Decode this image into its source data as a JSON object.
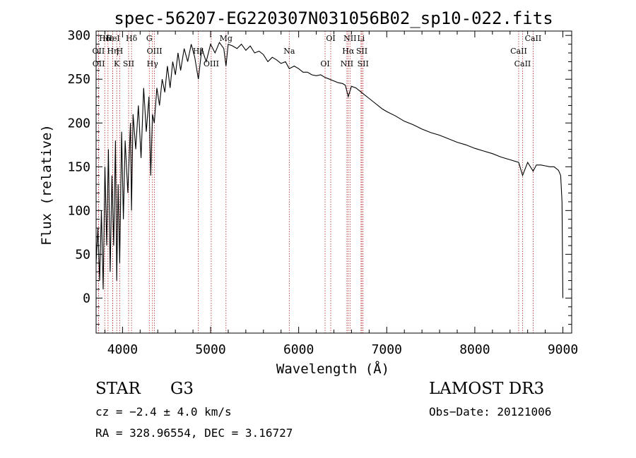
{
  "chart_data": {
    "type": "line",
    "title": "spec-56207-EG220307N031056B02_sp10-022.fits",
    "xlabel": "Wavelength (Å)",
    "ylabel": "Flux (relative)",
    "xlim": [
      3700,
      9100
    ],
    "ylim": [
      -40,
      305
    ],
    "x_ticks": [
      4000,
      5000,
      6000,
      7000,
      8000,
      9000
    ],
    "y_ticks": [
      0,
      50,
      100,
      150,
      200,
      250,
      300
    ],
    "x_tick_labels": [
      "4000",
      "5000",
      "6000",
      "7000",
      "8000",
      "9000"
    ],
    "y_tick_labels": [
      "0",
      "50",
      "100",
      "150",
      "200",
      "250",
      "300"
    ],
    "series": [
      {
        "name": "spectrum",
        "x": [
          3700,
          3720,
          3740,
          3760,
          3780,
          3800,
          3820,
          3840,
          3860,
          3880,
          3900,
          3920,
          3934,
          3950,
          3968,
          3990,
          4010,
          4030,
          4060,
          4090,
          4102,
          4120,
          4150,
          4180,
          4210,
          4240,
          4270,
          4300,
          4320,
          4340,
          4360,
          4390,
          4420,
          4450,
          4480,
          4510,
          4540,
          4570,
          4600,
          4630,
          4660,
          4700,
          4740,
          4780,
          4820,
          4861,
          4900,
          4950,
          5000,
          5050,
          5100,
          5150,
          5175,
          5200,
          5250,
          5300,
          5350,
          5400,
          5450,
          5500,
          5550,
          5600,
          5650,
          5700,
          5750,
          5800,
          5850,
          5893,
          5950,
          6000,
          6050,
          6100,
          6150,
          6200,
          6250,
          6300,
          6350,
          6400,
          6450,
          6500,
          6530,
          6563,
          6600,
          6650,
          6700,
          6750,
          6800,
          6850,
          6900,
          6950,
          7000,
          7100,
          7200,
          7300,
          7400,
          7500,
          7600,
          7700,
          7800,
          7900,
          8000,
          8100,
          8200,
          8300,
          8400,
          8498,
          8542,
          8600,
          8662,
          8700,
          8750,
          8800,
          8850,
          8900,
          8950,
          8975,
          8990,
          9000
        ],
        "values": [
          40,
          80,
          20,
          100,
          10,
          150,
          60,
          170,
          30,
          140,
          60,
          180,
          20,
          130,
          40,
          190,
          90,
          180,
          120,
          200,
          100,
          210,
          170,
          220,
          160,
          240,
          190,
          230,
          140,
          210,
          200,
          240,
          220,
          250,
          235,
          265,
          240,
          270,
          255,
          280,
          260,
          285,
          270,
          290,
          275,
          250,
          285,
          270,
          290,
          280,
          292,
          285,
          265,
          290,
          288,
          285,
          290,
          283,
          288,
          280,
          282,
          278,
          270,
          275,
          272,
          268,
          270,
          262,
          265,
          262,
          258,
          258,
          255,
          254,
          255,
          252,
          250,
          248,
          246,
          245,
          243,
          230,
          242,
          240,
          236,
          232,
          228,
          224,
          220,
          216,
          213,
          208,
          202,
          198,
          193,
          189,
          186,
          182,
          178,
          175,
          171,
          168,
          165,
          161,
          158,
          155,
          140,
          155,
          145,
          152,
          152,
          151,
          150,
          150,
          146,
          140,
          110,
          0
        ]
      }
    ],
    "line_markers": [
      {
        "label": "Hδ",
        "x": 3798
      },
      {
        "label": "OII",
        "x": 3727
      },
      {
        "label": "OII",
        "x": 3729
      },
      {
        "label": "Hε",
        "x": 3835
      },
      {
        "label": "Hη",
        "x": 3889
      },
      {
        "label": "K",
        "x": 3934
      },
      {
        "label": "HeI",
        "x": 3889
      },
      {
        "label": "H",
        "x": 3968
      },
      {
        "label": "SII",
        "x": 4069
      },
      {
        "label": "Hδ",
        "x": 4102
      },
      {
        "label": "OIII",
        "x": 4363
      },
      {
        "label": "Hγ",
        "x": 4340
      },
      {
        "label": "G",
        "x": 4304
      },
      {
        "label": "Hβ",
        "x": 4861
      },
      {
        "label": "OIII",
        "x": 5007
      },
      {
        "label": "Mg",
        "x": 5175
      },
      {
        "label": "Na",
        "x": 5893
      },
      {
        "label": "OI",
        "x": 6300
      },
      {
        "label": "OI",
        "x": 6364
      },
      {
        "label": "Hα",
        "x": 6563
      },
      {
        "label": "NII",
        "x": 6548
      },
      {
        "label": "NII",
        "x": 6583
      },
      {
        "label": "SII",
        "x": 6717
      },
      {
        "label": "SII",
        "x": 6731
      },
      {
        "label": "Li",
        "x": 6708
      },
      {
        "label": "CaII",
        "x": 8498
      },
      {
        "label": "CaII",
        "x": 8542
      },
      {
        "label": "CaII",
        "x": 8662
      }
    ]
  },
  "info": {
    "class": "STAR",
    "subclass": "G3",
    "survey": "LAMOST DR3",
    "cz": "cz = −2.4 ± 4.0 km/s",
    "obs_date": "Obs−Date: 20121006",
    "coords": "RA = 328.96554, DEC =   3.16727"
  },
  "colors": {
    "marker_line": "#b22222",
    "spectrum": "#000000"
  }
}
